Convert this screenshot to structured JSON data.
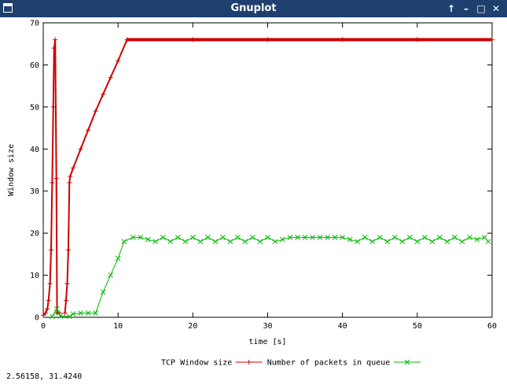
{
  "window": {
    "title": "Gnuplot",
    "buttons": {
      "up_icon": "arrow-up-icon",
      "minimize_icon": "minimize-icon",
      "maximize_icon": "maximize-icon",
      "close_icon": "close-icon"
    }
  },
  "status_text": "2.56158,  31.4240",
  "chart_data": {
    "type": "line",
    "title": "",
    "xlabel": "time [s]",
    "ylabel": "Window size",
    "xlim": [
      0,
      60
    ],
    "ylim": [
      0,
      70
    ],
    "xticks": [
      0,
      10,
      20,
      30,
      40,
      50,
      60
    ],
    "yticks": [
      0,
      10,
      20,
      30,
      40,
      50,
      60,
      70
    ],
    "grid": false,
    "legend_position": "bottom-center",
    "series": [
      {
        "name": "TCP Window size",
        "color": "#cc0000",
        "marker": "plus",
        "segments": [
          [
            [
              0,
              0.5
            ],
            [
              0.3,
              1
            ],
            [
              0.55,
              2
            ],
            [
              0.7,
              4
            ],
            [
              0.9,
              8
            ],
            [
              1.05,
              16
            ],
            [
              1.2,
              32
            ],
            [
              1.35,
              50
            ],
            [
              1.45,
              64
            ],
            [
              1.6,
              66
            ],
            [
              1.75,
              33
            ],
            [
              1.85,
              1
            ],
            [
              2.2,
              1
            ]
          ],
          [
            [
              2.9,
              1
            ],
            [
              3.05,
              4
            ],
            [
              3.2,
              8
            ],
            [
              3.35,
              16
            ],
            [
              3.5,
              32
            ],
            [
              3.6,
              33.5
            ],
            [
              4.0,
              35.5
            ],
            [
              5.0,
              40
            ],
            [
              6.0,
              44.5
            ],
            [
              7.0,
              49
            ],
            [
              8.0,
              53
            ],
            [
              9.0,
              57
            ],
            [
              10.0,
              61
            ],
            [
              11.2,
              66
            ],
            [
              20,
              66
            ],
            [
              30,
              66
            ],
            [
              40,
              66
            ],
            [
              50,
              66
            ],
            [
              60,
              66
            ]
          ]
        ]
      },
      {
        "name": "Number of packets in queue",
        "color": "#00bb00",
        "marker": "cross",
        "segments": [
          [
            [
              1.2,
              0.2
            ],
            [
              1.8,
              2
            ],
            [
              2.3,
              0.3
            ],
            [
              3.5,
              0.2
            ],
            [
              4.0,
              0.8
            ],
            [
              5.0,
              1
            ],
            [
              6.0,
              1
            ],
            [
              7.0,
              1
            ],
            [
              8.0,
              6
            ],
            [
              9.0,
              10
            ],
            [
              10.0,
              14
            ],
            [
              10.8,
              18
            ],
            [
              12,
              19
            ],
            [
              13,
              19
            ],
            [
              14,
              18.5
            ],
            [
              15,
              18
            ],
            [
              16,
              19
            ],
            [
              17,
              18
            ],
            [
              18,
              19
            ],
            [
              19,
              18
            ],
            [
              20,
              19
            ],
            [
              21,
              18
            ],
            [
              22,
              19
            ],
            [
              23,
              18
            ],
            [
              24,
              19
            ],
            [
              25,
              18
            ],
            [
              26,
              19
            ],
            [
              27,
              18
            ],
            [
              28,
              19
            ],
            [
              29,
              18
            ],
            [
              30,
              19
            ],
            [
              31,
              18
            ],
            [
              32,
              18.5
            ],
            [
              33,
              19
            ],
            [
              34,
              19
            ],
            [
              35,
              19
            ],
            [
              36,
              19
            ],
            [
              37,
              19
            ],
            [
              38,
              19
            ],
            [
              39,
              19
            ],
            [
              40,
              19
            ],
            [
              41,
              18.5
            ],
            [
              42,
              18
            ],
            [
              43,
              19
            ],
            [
              44,
              18
            ],
            [
              45,
              19
            ],
            [
              46,
              18
            ],
            [
              47,
              19
            ],
            [
              48,
              18
            ],
            [
              49,
              19
            ],
            [
              50,
              18
            ],
            [
              51,
              19
            ],
            [
              52,
              18
            ],
            [
              53,
              19
            ],
            [
              54,
              18
            ],
            [
              55,
              19
            ],
            [
              56,
              18
            ],
            [
              57,
              19
            ],
            [
              58,
              18.5
            ],
            [
              59,
              19
            ],
            [
              59.5,
              18
            ]
          ]
        ]
      }
    ]
  }
}
